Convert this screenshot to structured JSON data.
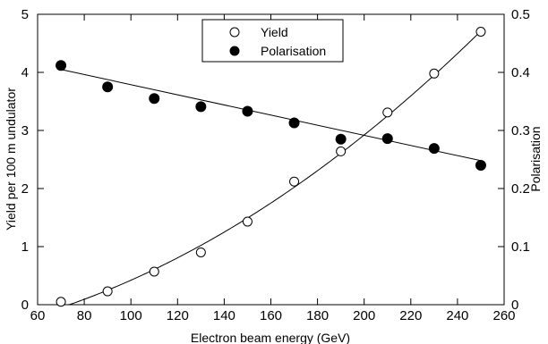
{
  "chart_data": {
    "type": "scatter",
    "xlabel": "Electron beam energy (GeV)",
    "ylabel_left": "Yield per 100 m undulator",
    "ylabel_right": "Polarisation",
    "xlim": [
      60,
      260
    ],
    "ylim_left": [
      0,
      5
    ],
    "ylim_right": [
      0,
      0.5
    ],
    "x_ticks": [
      60,
      80,
      100,
      120,
      140,
      160,
      180,
      200,
      220,
      240,
      260
    ],
    "y_left_ticks": [
      0,
      1,
      2,
      3,
      4,
      5
    ],
    "y_right_ticks": [
      0,
      0.1,
      0.2,
      0.3,
      0.4,
      0.5
    ],
    "grid": false,
    "legend_position": "top-center",
    "series": [
      {
        "name": "Yield",
        "axis": "left",
        "marker": "open-circle",
        "x": [
          70,
          90,
          110,
          130,
          150,
          170,
          190,
          210,
          230,
          250
        ],
        "y": [
          0.05,
          0.23,
          0.57,
          0.9,
          1.43,
          2.12,
          2.64,
          3.31,
          3.98,
          4.7
        ],
        "fit": {
          "type": "quadratic",
          "x": [
            70,
            250
          ],
          "y_at_70": -0.05,
          "y_at_160": 1.75,
          "y_at_250": 4.71
        }
      },
      {
        "name": "Polarisation",
        "axis": "right",
        "marker": "filled-circle",
        "x": [
          70,
          90,
          110,
          130,
          150,
          170,
          190,
          210,
          230,
          250
        ],
        "y": [
          0.412,
          0.375,
          0.355,
          0.341,
          0.333,
          0.313,
          0.285,
          0.286,
          0.269,
          0.24
        ],
        "fit": {
          "type": "linear",
          "x": [
            70,
            250
          ],
          "y": [
            0.405,
            0.248
          ]
        }
      }
    ]
  }
}
